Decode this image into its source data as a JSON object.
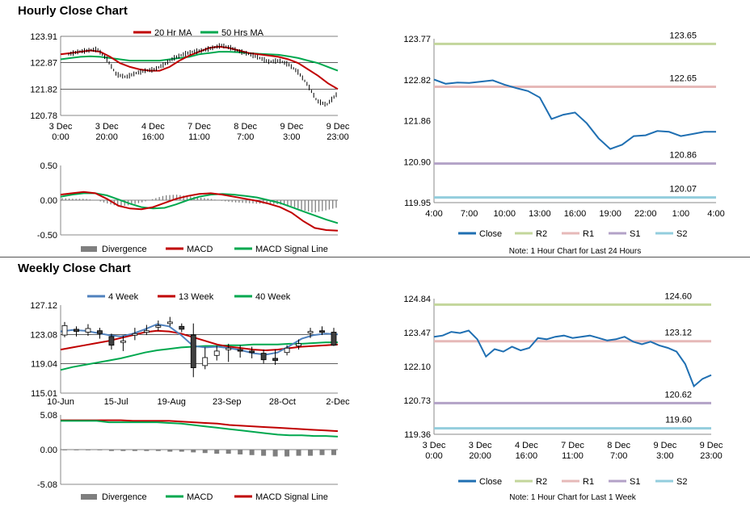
{
  "sections": {
    "hourly_title": "Hourly Close Chart",
    "weekly_title": "Weekly Close Chart"
  },
  "colors": {
    "ma20": "#c00000",
    "ma50": "#00a84f",
    "ma4": "#4f81bd",
    "close": "#1f6fb2",
    "R2": "#c3d69b",
    "R1": "#e6b9b8",
    "S1": "#b3a2c7",
    "S2": "#93cddd",
    "divergence": "#7f7f7f",
    "macd_red": "#c00000",
    "macd_green": "#00a84f"
  },
  "chart_data": [
    {
      "id": "hourly_price",
      "type": "line",
      "legend": [
        "20 Hr MA",
        "50 Hrs MA"
      ],
      "y_ticks": [
        "123.91",
        "122.87",
        "121.82",
        "120.78"
      ],
      "ylim": [
        120.78,
        123.91
      ],
      "x_ticks": [
        [
          "3 Dec",
          "0:00"
        ],
        [
          "3 Dec",
          "20:00"
        ],
        [
          "4 Dec",
          "16:00"
        ],
        [
          "7 Dec",
          "11:00"
        ],
        [
          "8 Dec",
          "7:00"
        ],
        [
          "9 Dec",
          "3:00"
        ],
        [
          "9 Dec",
          "23:00"
        ]
      ],
      "series": [
        {
          "name": "20 Hr MA",
          "values": [
            123.2,
            123.25,
            123.3,
            123.35,
            123.3,
            123.1,
            122.85,
            122.7,
            122.6,
            122.55,
            122.55,
            122.7,
            122.95,
            123.15,
            123.3,
            123.45,
            123.5,
            123.45,
            123.35,
            123.25,
            123.2,
            123.15,
            123.1,
            123.0,
            122.85,
            122.6,
            122.35,
            122.05,
            121.82
          ]
        },
        {
          "name": "50 Hrs MA",
          "values": [
            123.0,
            123.05,
            123.1,
            123.12,
            123.1,
            123.05,
            123.0,
            122.95,
            122.95,
            122.95,
            122.95,
            123.0,
            123.05,
            123.1,
            123.2,
            123.25,
            123.3,
            123.3,
            123.28,
            123.25,
            123.22,
            123.2,
            123.18,
            123.12,
            123.05,
            122.95,
            122.85,
            122.7,
            122.55
          ]
        },
        {
          "name": "Price",
          "values": [
            123.2,
            123.3,
            123.35,
            123.4,
            123.0,
            122.4,
            122.3,
            122.45,
            122.55,
            122.6,
            122.8,
            123.05,
            123.2,
            123.3,
            123.35,
            123.45,
            123.55,
            123.45,
            123.3,
            123.2,
            123.05,
            122.9,
            122.95,
            122.8,
            122.5,
            122.0,
            121.35,
            121.2,
            121.6
          ]
        }
      ]
    },
    {
      "id": "hourly_macd",
      "type": "line",
      "legend": [
        "Divergence",
        "MACD",
        "MACD Signal Line"
      ],
      "y_ticks": [
        "0.50",
        "0.00",
        "-0.50"
      ],
      "ylim": [
        -0.5,
        0.5
      ],
      "series": [
        {
          "name": "MACD",
          "values": [
            0.08,
            0.1,
            0.12,
            0.1,
            0.02,
            -0.08,
            -0.12,
            -0.13,
            -0.1,
            -0.04,
            0.02,
            0.06,
            0.09,
            0.1,
            0.08,
            0.05,
            0.02,
            -0.01,
            -0.05,
            -0.1,
            -0.18,
            -0.3,
            -0.4,
            -0.43,
            -0.44
          ]
        },
        {
          "name": "MACD Signal Line",
          "values": [
            0.05,
            0.08,
            0.1,
            0.1,
            0.07,
            0.01,
            -0.05,
            -0.1,
            -0.12,
            -0.11,
            -0.06,
            0.0,
            0.05,
            0.08,
            0.09,
            0.08,
            0.06,
            0.04,
            0.0,
            -0.04,
            -0.1,
            -0.16,
            -0.22,
            -0.28,
            -0.33
          ]
        },
        {
          "name": "Divergence",
          "values": [
            0.03,
            0.02,
            0.02,
            0.0,
            -0.05,
            -0.09,
            -0.07,
            -0.03,
            0.02,
            0.07,
            0.08,
            0.06,
            0.04,
            0.02,
            -0.01,
            -0.03,
            -0.04,
            -0.05,
            -0.05,
            -0.06,
            -0.08,
            -0.14,
            -0.18,
            -0.15,
            -0.11
          ]
        }
      ]
    },
    {
      "id": "hourly_24h",
      "type": "line",
      "legend": [
        "Close",
        "R2",
        "R1",
        "S1",
        "S2"
      ],
      "note": "Note: 1 Hour Chart for Last 24 Hours",
      "y_ticks": [
        "123.77",
        "122.82",
        "121.86",
        "120.90",
        "119.95"
      ],
      "ylim": [
        119.95,
        123.77
      ],
      "x_ticks": [
        "4:00",
        "7:00",
        "10:00",
        "13:00",
        "16:00",
        "19:00",
        "22:00",
        "1:00",
        "4:00"
      ],
      "levels": [
        {
          "name": "R2",
          "value": 123.65,
          "label": "123.65"
        },
        {
          "name": "R1",
          "value": 122.65,
          "label": "122.65"
        },
        {
          "name": "S1",
          "value": 120.86,
          "label": "120.86"
        },
        {
          "name": "S2",
          "value": 120.07,
          "label": "120.07"
        }
      ],
      "close": [
        122.82,
        122.72,
        122.75,
        122.74,
        122.77,
        122.8,
        122.7,
        122.62,
        122.55,
        122.4,
        121.9,
        122.0,
        122.05,
        121.8,
        121.45,
        121.2,
        121.3,
        121.5,
        121.52,
        121.62,
        121.6,
        121.5,
        121.55,
        121.6,
        121.6
      ]
    },
    {
      "id": "weekly_price",
      "type": "line",
      "legend": [
        "4 Week",
        "13 Week",
        "40 Week"
      ],
      "y_ticks": [
        "127.12",
        "123.08",
        "119.04",
        "115.01"
      ],
      "ylim": [
        115.01,
        127.12
      ],
      "x_ticks": [
        "10-Jun",
        "15-Jul",
        "19-Aug",
        "23-Sep",
        "28-Oct",
        "2-Dec"
      ],
      "series": [
        {
          "name": "4 Week",
          "values": [
            123.5,
            123.7,
            123.6,
            123.3,
            123.0,
            122.8,
            123.2,
            123.8,
            124.5,
            124.2,
            123.0,
            121.5,
            121.3,
            121.4,
            121.2,
            120.9,
            120.5,
            120.3,
            120.6,
            121.5,
            122.5,
            123.0,
            123.2,
            123.1
          ]
        },
        {
          "name": "13 Week",
          "values": [
            121.0,
            121.3,
            121.6,
            121.9,
            122.2,
            122.6,
            123.0,
            123.4,
            123.6,
            123.5,
            123.2,
            122.7,
            122.2,
            121.7,
            121.4,
            121.2,
            121.0,
            120.9,
            121.0,
            121.2,
            121.4,
            121.5,
            121.6,
            121.7
          ]
        },
        {
          "name": "40 Week",
          "values": [
            118.2,
            118.6,
            118.9,
            119.2,
            119.5,
            119.8,
            120.2,
            120.6,
            120.9,
            121.1,
            121.3,
            121.4,
            121.5,
            121.5,
            121.6,
            121.6,
            121.7,
            121.7,
            121.7,
            121.8,
            121.8,
            121.9,
            122.0,
            122.0
          ]
        }
      ],
      "candles": [
        [
          123.0,
          124.3,
          124.8,
          122.7
        ],
        [
          123.8,
          123.5,
          124.2,
          122.8
        ],
        [
          123.4,
          123.9,
          124.5,
          122.9
        ],
        [
          123.6,
          123.2,
          124.0,
          122.5
        ],
        [
          122.8,
          121.6,
          123.2,
          121.0
        ],
        [
          122.0,
          122.2,
          122.9,
          120.8
        ],
        [
          123.0,
          123.2,
          124.0,
          122.3
        ],
        [
          123.4,
          123.6,
          124.4,
          123.0
        ],
        [
          124.1,
          124.3,
          125.0,
          123.6
        ],
        [
          124.7,
          124.8,
          125.5,
          124.2
        ],
        [
          124.2,
          123.8,
          124.6,
          123.4
        ],
        [
          123.0,
          118.5,
          124.6,
          117.2
        ],
        [
          118.8,
          119.9,
          121.3,
          118.3
        ],
        [
          120.2,
          120.8,
          121.5,
          119.5
        ],
        [
          121.0,
          121.2,
          121.8,
          119.3
        ],
        [
          121.0,
          120.9,
          121.6,
          119.9
        ],
        [
          120.8,
          120.7,
          121.4,
          119.8
        ],
        [
          120.5,
          119.6,
          121.0,
          119.1
        ],
        [
          119.8,
          119.5,
          121.0,
          118.9
        ],
        [
          120.6,
          121.2,
          121.6,
          120.2
        ],
        [
          121.5,
          121.8,
          122.4,
          121.0
        ],
        [
          123.3,
          123.5,
          124.0,
          122.6
        ],
        [
          123.6,
          123.4,
          124.2,
          123.0
        ],
        [
          123.4,
          121.6,
          124.0,
          121.5
        ]
      ]
    },
    {
      "id": "weekly_macd",
      "type": "line",
      "legend": [
        "Divergence",
        "MACD",
        "MACD Signal Line"
      ],
      "y_ticks": [
        "5.08",
        "0.00",
        "-5.08"
      ],
      "ylim": [
        -5.08,
        5.08
      ],
      "series": [
        {
          "name": "MACD",
          "values": [
            4.2,
            4.2,
            4.2,
            4.2,
            4.0,
            4.0,
            4.0,
            4.0,
            4.0,
            3.9,
            3.8,
            3.6,
            3.4,
            3.2,
            3.0,
            2.8,
            2.6,
            2.4,
            2.2,
            2.1,
            2.1,
            2.0,
            2.0,
            1.9
          ]
        },
        {
          "name": "MACD Signal Line",
          "values": [
            4.3,
            4.3,
            4.3,
            4.3,
            4.3,
            4.3,
            4.2,
            4.2,
            4.2,
            4.2,
            4.1,
            4.0,
            3.9,
            3.8,
            3.6,
            3.5,
            3.4,
            3.3,
            3.2,
            3.1,
            3.0,
            2.9,
            2.8,
            2.7
          ]
        },
        {
          "name": "Divergence",
          "values": [
            -0.1,
            -0.1,
            -0.1,
            -0.1,
            -0.2,
            -0.2,
            -0.2,
            -0.2,
            -0.2,
            -0.3,
            -0.3,
            -0.4,
            -0.5,
            -0.6,
            -0.6,
            -0.7,
            -0.8,
            -0.9,
            -1.0,
            -1.0,
            -0.9,
            -0.9,
            -0.8,
            -0.8
          ]
        }
      ]
    },
    {
      "id": "weekly_1w",
      "type": "line",
      "legend": [
        "Close",
        "R2",
        "R1",
        "S1",
        "S2"
      ],
      "note": "Note: 1 Hour Chart for Last 1 Week",
      "y_ticks": [
        "124.84",
        "123.47",
        "122.10",
        "120.73",
        "119.36"
      ],
      "ylim": [
        119.36,
        124.84
      ],
      "x_ticks": [
        [
          "3 Dec",
          "0:00"
        ],
        [
          "3 Dec",
          "20:00"
        ],
        [
          "4 Dec",
          "16:00"
        ],
        [
          "7 Dec",
          "11:00"
        ],
        [
          "8 Dec",
          "7:00"
        ],
        [
          "9 Dec",
          "3:00"
        ],
        [
          "9 Dec",
          "23:00"
        ]
      ],
      "levels": [
        {
          "name": "R2",
          "value": 124.6,
          "label": "124.60"
        },
        {
          "name": "R1",
          "value": 123.12,
          "label": "123.12"
        },
        {
          "name": "S1",
          "value": 120.62,
          "label": "120.62"
        },
        {
          "name": "S2",
          "value": 119.6,
          "label": "119.60"
        }
      ],
      "close": [
        123.3,
        123.35,
        123.5,
        123.45,
        123.55,
        123.2,
        122.5,
        122.8,
        122.7,
        122.9,
        122.75,
        122.85,
        123.25,
        123.2,
        123.3,
        123.35,
        123.25,
        123.3,
        123.35,
        123.25,
        123.15,
        123.2,
        123.3,
        123.1,
        123.0,
        123.1,
        122.95,
        122.85,
        122.7,
        122.2,
        121.3,
        121.6,
        121.75
      ]
    }
  ]
}
